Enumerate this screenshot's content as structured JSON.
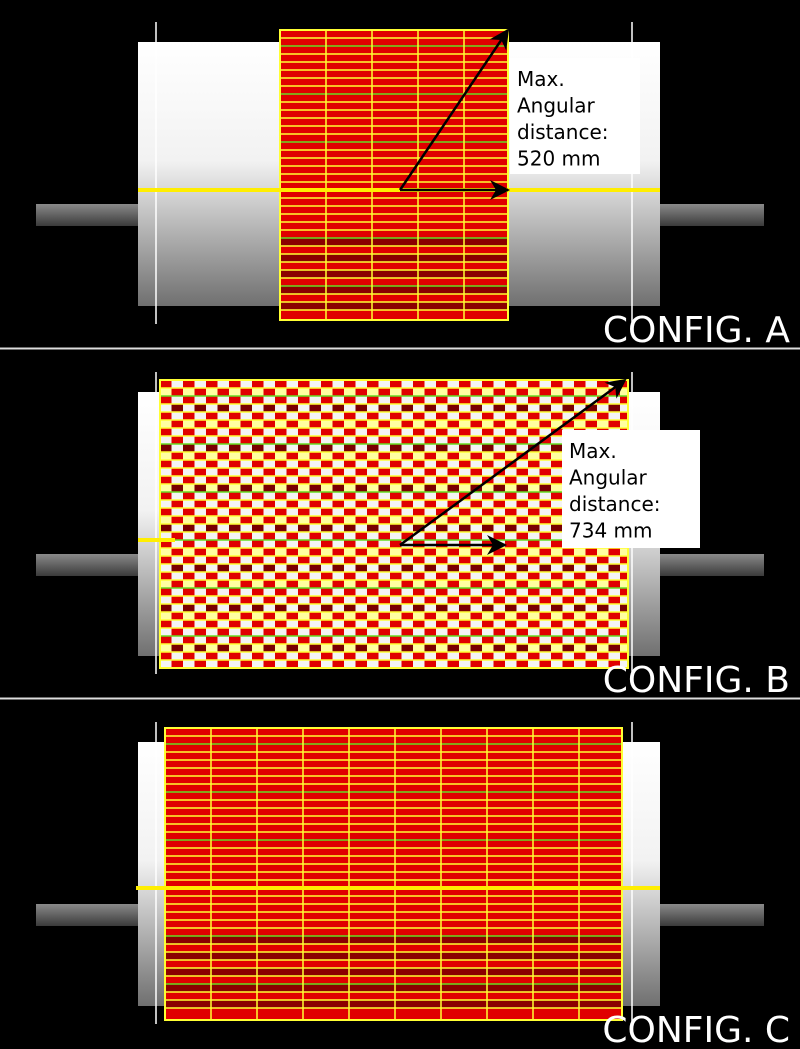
{
  "panels": [
    {
      "label": "CONFIG. A",
      "annotation": [
        "Max.",
        "Angular",
        "distance:",
        "520 mm"
      ]
    },
    {
      "label": "CONFIG. B",
      "annotation": [
        "Max.",
        "Angular",
        "distance:",
        "734 mm"
      ]
    },
    {
      "label": "CONFIG. C"
    }
  ]
}
